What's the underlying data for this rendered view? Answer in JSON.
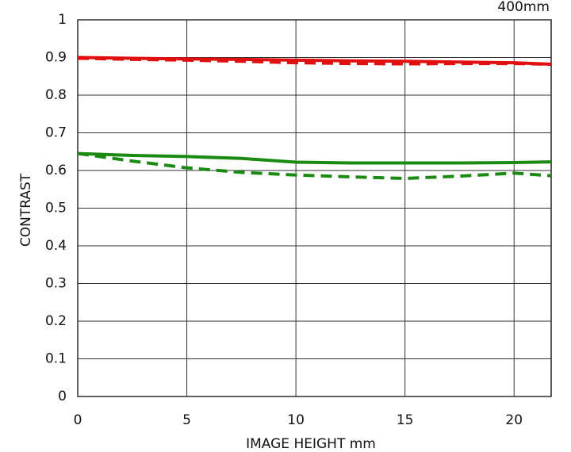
{
  "chart_data": {
    "type": "line",
    "title": "400mm",
    "xlabel": "IMAGE HEIGHT   mm",
    "ylabel": "CONTRAST",
    "x": [
      0,
      2.5,
      5,
      7.5,
      10,
      12.5,
      15,
      17.5,
      20,
      21.7
    ],
    "series": [
      {
        "color": "#e01010",
        "dashed": false,
        "values": [
          0.9,
          0.898,
          0.896,
          0.895,
          0.893,
          0.891,
          0.89,
          0.888,
          0.886,
          0.882
        ]
      },
      {
        "color": "#e01010",
        "dashed": true,
        "values": [
          0.898,
          0.895,
          0.893,
          0.89,
          0.886,
          0.884,
          0.883,
          0.884,
          0.884,
          0.882
        ]
      },
      {
        "color": "#1a8a12",
        "dashed": false,
        "values": [
          0.645,
          0.64,
          0.637,
          0.632,
          0.622,
          0.62,
          0.62,
          0.62,
          0.621,
          0.623
        ]
      },
      {
        "color": "#1a8a12",
        "dashed": true,
        "values": [
          0.645,
          0.625,
          0.607,
          0.595,
          0.588,
          0.583,
          0.579,
          0.585,
          0.593,
          0.586
        ]
      }
    ],
    "xlim": [
      0,
      21.7
    ],
    "xticks": [
      0,
      5,
      10,
      15,
      20
    ],
    "ylim": [
      0,
      1
    ],
    "yticks": [
      0,
      0.1,
      0.2,
      0.3,
      0.4,
      0.5,
      0.6,
      0.7,
      0.8,
      0.9,
      1
    ],
    "grid": true
  }
}
